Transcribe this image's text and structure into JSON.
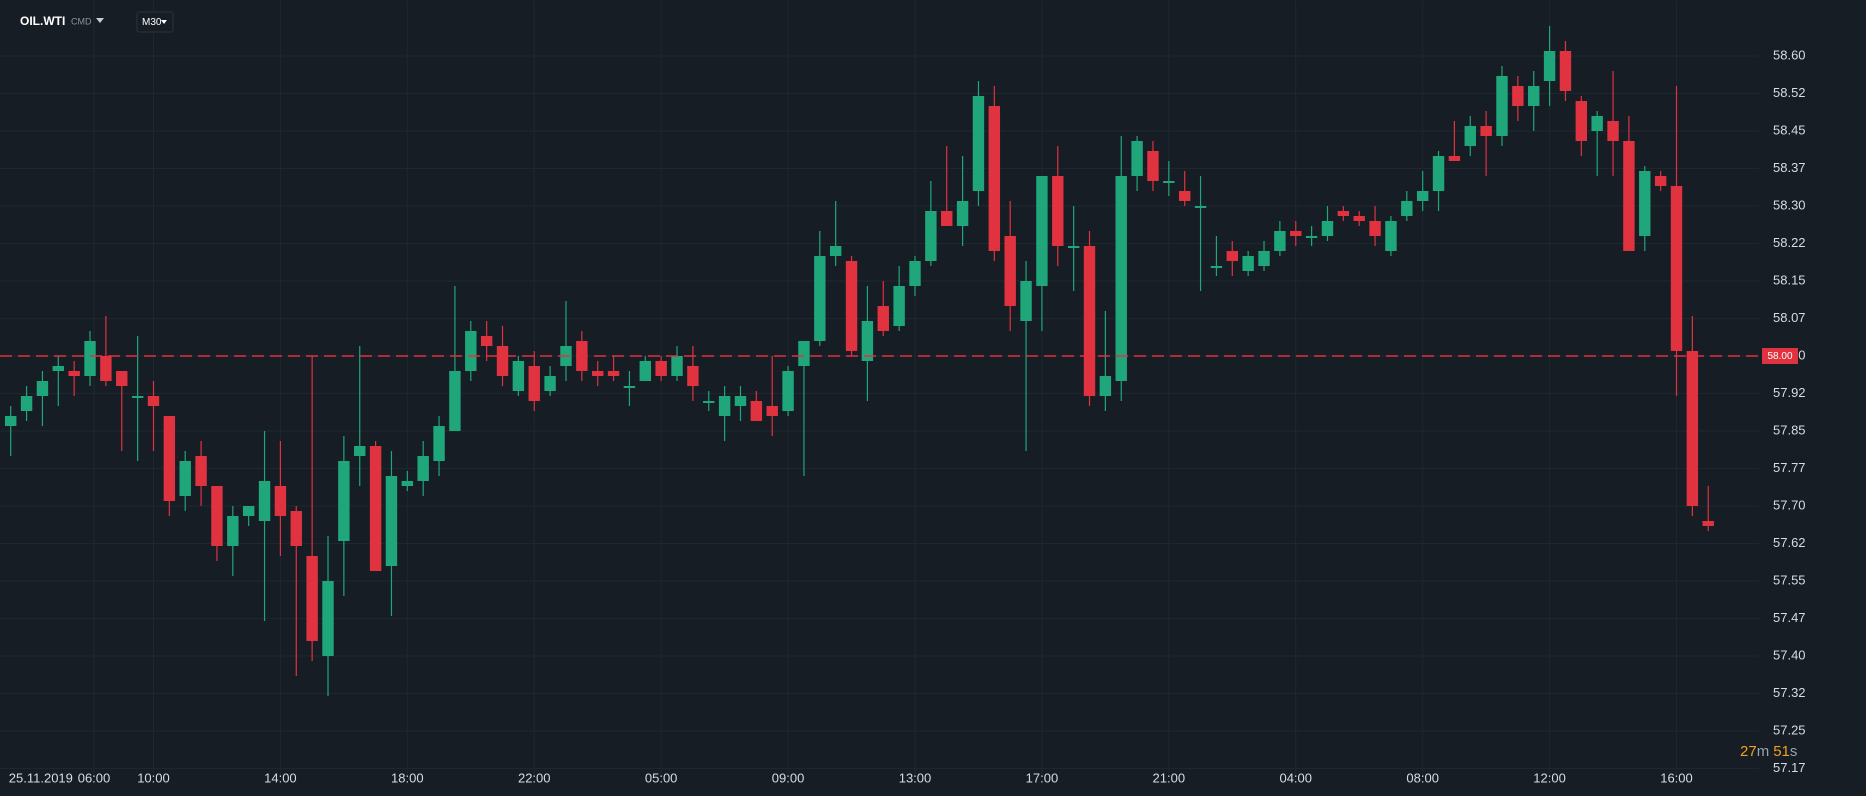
{
  "header": {
    "symbol": "OIL.WTI",
    "asset_type": "CMD",
    "timeframe": "M30"
  },
  "countdown": {
    "minutes": 27,
    "minutes_unit": "m",
    "seconds": 51,
    "seconds_unit": "s"
  },
  "chart_data": {
    "type": "candlestick",
    "up_color": "#1fa67a",
    "down_color": "#e0323f",
    "grid": true,
    "open": [
      57.86,
      57.89,
      57.92,
      57.97,
      57.97,
      57.96,
      58.0,
      57.97,
      57.92,
      57.92,
      57.88,
      57.72,
      57.8,
      57.74,
      57.62,
      57.68,
      57.67,
      57.74,
      57.69,
      57.6,
      57.4,
      57.63,
      57.8,
      57.82,
      57.58,
      57.74,
      57.75,
      57.79,
      57.85,
      57.97,
      58.04,
      58.02,
      57.93,
      57.98,
      57.93,
      57.98,
      58.03,
      57.97,
      57.97,
      57.94,
      57.95,
      57.99,
      57.96,
      57.98,
      57.91,
      57.88,
      57.9,
      57.91,
      57.9,
      57.89,
      57.98,
      58.03,
      58.2,
      58.19,
      57.99,
      58.1,
      58.06,
      58.14,
      58.19,
      58.29,
      58.26,
      58.33,
      58.5,
      58.24,
      58.07,
      58.14,
      58.36,
      58.22,
      58.22,
      57.92,
      57.95,
      58.36,
      58.41,
      58.35,
      58.33,
      58.3,
      58.18,
      58.21,
      58.17,
      58.18,
      58.21,
      58.25,
      58.24,
      58.24,
      58.29,
      58.28,
      58.27,
      58.21,
      58.28,
      58.31,
      58.33,
      58.4,
      58.42,
      58.46,
      58.44,
      58.54,
      58.5,
      58.55,
      58.61,
      58.51,
      58.45,
      58.47,
      58.43,
      58.24,
      58.36,
      58.34,
      58.01,
      57.67
    ],
    "high": [
      57.9,
      57.94,
      57.97,
      58.0,
      57.99,
      58.05,
      58.08,
      57.97,
      58.04,
      57.95,
      57.88,
      57.81,
      57.83,
      57.74,
      57.7,
      57.7,
      57.85,
      57.83,
      57.7,
      58.0,
      57.64,
      57.84,
      58.02,
      57.83,
      57.81,
      57.77,
      57.83,
      57.88,
      58.14,
      58.07,
      58.07,
      58.06,
      58.0,
      58.01,
      57.98,
      58.11,
      58.05,
      57.99,
      58.0,
      57.97,
      58.0,
      58.0,
      58.02,
      58.02,
      57.93,
      57.94,
      57.94,
      57.93,
      58.0,
      57.98,
      58.03,
      58.25,
      58.31,
      58.2,
      58.14,
      58.15,
      58.18,
      58.2,
      58.35,
      58.42,
      58.4,
      58.55,
      58.54,
      58.31,
      58.19,
      58.36,
      58.42,
      58.3,
      58.25,
      58.09,
      58.44,
      58.44,
      58.43,
      58.39,
      58.37,
      58.36,
      58.24,
      58.23,
      58.21,
      58.23,
      58.27,
      58.27,
      58.26,
      58.3,
      58.3,
      58.29,
      58.3,
      58.28,
      58.33,
      58.37,
      58.41,
      58.47,
      58.48,
      58.49,
      58.58,
      58.56,
      58.57,
      58.66,
      58.63,
      58.52,
      58.49,
      58.57,
      58.48,
      58.38,
      58.37,
      58.54,
      58.08,
      57.74
    ],
    "low": [
      57.8,
      57.87,
      57.86,
      57.9,
      57.92,
      57.94,
      57.94,
      57.81,
      57.79,
      57.81,
      57.68,
      57.69,
      57.7,
      57.59,
      57.56,
      57.66,
      57.47,
      57.6,
      57.36,
      57.39,
      57.32,
      57.52,
      57.74,
      57.57,
      57.48,
      57.73,
      57.72,
      57.76,
      57.85,
      57.95,
      57.99,
      57.94,
      57.92,
      57.89,
      57.92,
      57.95,
      57.95,
      57.94,
      57.95,
      57.9,
      57.95,
      57.95,
      57.95,
      57.91,
      57.89,
      57.83,
      57.87,
      57.87,
      57.84,
      57.88,
      57.76,
      58.02,
      58.18,
      58.0,
      57.91,
      58.04,
      58.05,
      58.12,
      58.18,
      58.26,
      58.22,
      58.3,
      58.19,
      58.05,
      57.81,
      58.05,
      58.18,
      58.13,
      57.9,
      57.89,
      57.91,
      58.33,
      58.33,
      58.32,
      58.3,
      58.13,
      58.16,
      58.16,
      58.16,
      58.17,
      58.2,
      58.22,
      58.22,
      58.23,
      58.27,
      58.26,
      58.22,
      58.2,
      58.27,
      58.29,
      58.29,
      58.39,
      58.4,
      58.36,
      58.42,
      58.47,
      58.45,
      58.5,
      58.51,
      58.4,
      58.36,
      58.36,
      58.21,
      58.21,
      58.33,
      57.92,
      57.68,
      57.65
    ],
    "close": [
      57.88,
      57.92,
      57.95,
      57.98,
      57.96,
      58.03,
      57.95,
      57.94,
      57.92,
      57.9,
      57.71,
      57.79,
      57.74,
      57.62,
      57.68,
      57.7,
      57.75,
      57.68,
      57.62,
      57.43,
      57.55,
      57.79,
      57.82,
      57.57,
      57.76,
      57.75,
      57.8,
      57.86,
      57.97,
      58.05,
      58.02,
      57.96,
      57.99,
      57.91,
      57.96,
      58.02,
      57.97,
      57.96,
      57.96,
      57.94,
      57.99,
      57.96,
      58.0,
      57.94,
      57.91,
      57.92,
      57.92,
      57.87,
      57.88,
      57.97,
      58.03,
      58.2,
      58.22,
      58.01,
      58.07,
      58.05,
      58.14,
      58.19,
      58.29,
      58.26,
      58.31,
      58.52,
      58.21,
      58.1,
      58.15,
      58.36,
      58.22,
      58.22,
      57.92,
      57.96,
      58.36,
      58.43,
      58.35,
      58.35,
      58.31,
      58.3,
      58.18,
      58.19,
      58.2,
      58.21,
      58.25,
      58.24,
      58.24,
      58.27,
      58.28,
      58.27,
      58.24,
      58.27,
      58.31,
      58.33,
      58.4,
      58.39,
      58.46,
      58.44,
      58.56,
      58.5,
      58.54,
      58.61,
      58.53,
      58.43,
      58.48,
      58.43,
      58.21,
      58.37,
      58.34,
      58.01,
      57.7,
      57.66
    ],
    "xlim": [
      -0.675,
      110.2
    ],
    "xticks": [
      {
        "value": 1.9,
        "label": "25.11.2019"
      },
      {
        "value": 5.25,
        "label": "06:00"
      },
      {
        "value": 9,
        "label": "10:00"
      },
      {
        "value": 17,
        "label": "14:00"
      },
      {
        "value": 25,
        "label": "18:00"
      },
      {
        "value": 33,
        "label": "22:00"
      },
      {
        "value": 41,
        "label": "05:00"
      },
      {
        "value": 49,
        "label": "09:00"
      },
      {
        "value": 57,
        "label": "13:00"
      },
      {
        "value": 65,
        "label": "17:00"
      },
      {
        "value": 73,
        "label": "21:00"
      },
      {
        "value": 81,
        "label": "04:00"
      },
      {
        "value": 89,
        "label": "08:00"
      },
      {
        "value": 97,
        "label": "12:00"
      },
      {
        "value": 105,
        "label": "16:00"
      }
    ],
    "ylim": [
      57.16,
      58.71
    ],
    "yticks": [
      {
        "value": 58.6,
        "label": "58.60"
      },
      {
        "value": 58.525,
        "label": "58.52"
      },
      {
        "value": 58.45,
        "label": "58.45"
      },
      {
        "value": 58.375,
        "label": "58.37"
      },
      {
        "value": 58.3,
        "label": "58.30"
      },
      {
        "value": 58.225,
        "label": "58.22"
      },
      {
        "value": 58.15,
        "label": "58.15"
      },
      {
        "value": 58.075,
        "label": "58.07"
      },
      {
        "value": 58.0,
        "label": "58.00"
      },
      {
        "value": 57.925,
        "label": "57.92"
      },
      {
        "value": 57.85,
        "label": "57.85"
      },
      {
        "value": 57.775,
        "label": "57.77"
      },
      {
        "value": 57.7,
        "label": "57.70"
      },
      {
        "value": 57.625,
        "label": "57.62"
      },
      {
        "value": 57.55,
        "label": "57.55"
      },
      {
        "value": 57.475,
        "label": "57.47"
      },
      {
        "value": 57.4,
        "label": "57.40"
      },
      {
        "value": 57.325,
        "label": "57.32"
      },
      {
        "value": 57.25,
        "label": "57.25"
      },
      {
        "value": 57.175,
        "label": "57.17"
      }
    ],
    "price_line": {
      "value": 58.0,
      "label": "58.00",
      "color": "#e0323f"
    }
  }
}
